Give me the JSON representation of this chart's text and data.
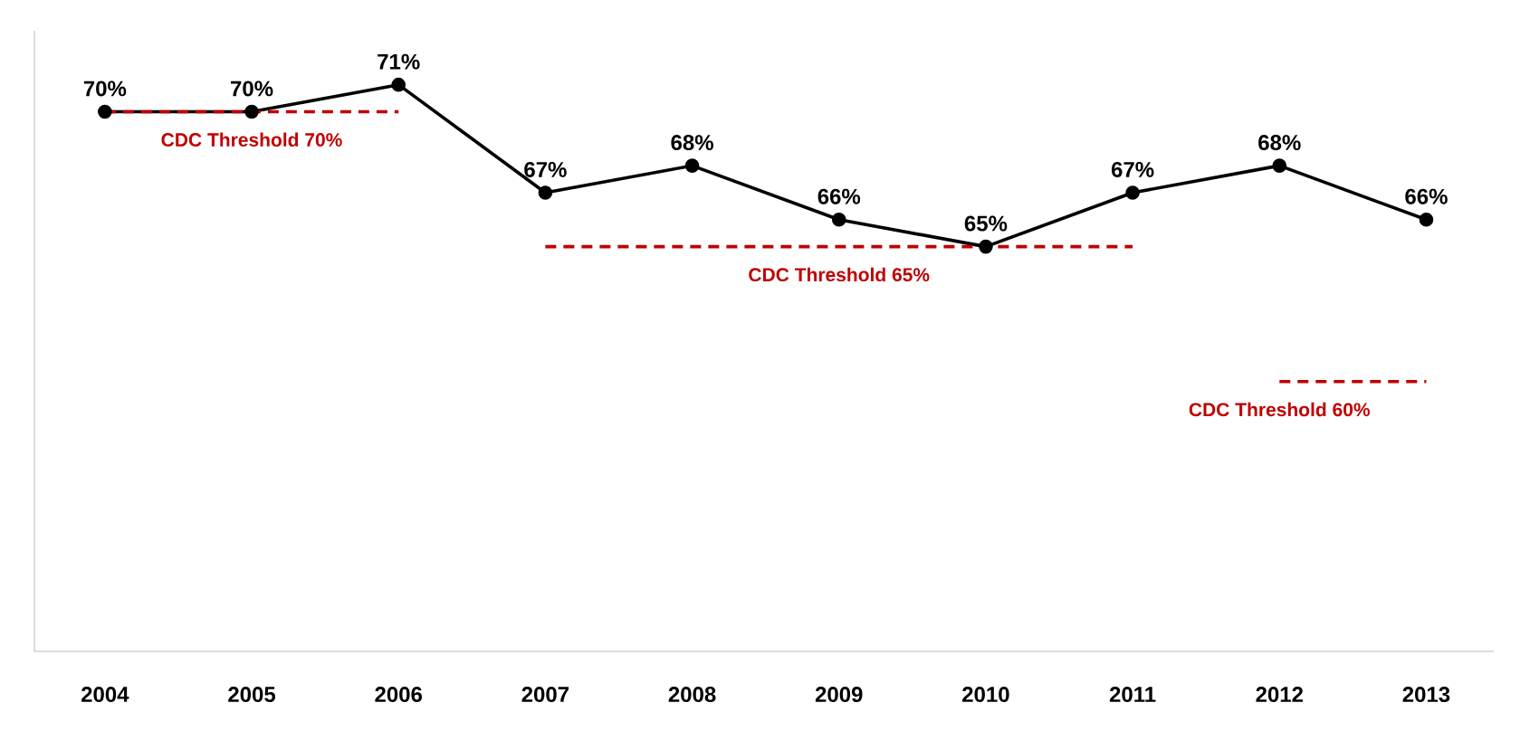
{
  "chart_data": {
    "type": "line",
    "categories": [
      "2004",
      "2005",
      "2006",
      "2007",
      "2008",
      "2009",
      "2010",
      "2011",
      "2012",
      "2013"
    ],
    "series": [
      {
        "color": "#000000",
        "marker": "circle",
        "line_style": "solid",
        "values": [
          70,
          70,
          71,
          67,
          68,
          66,
          65,
          67,
          68,
          66
        ],
        "value_labels": [
          "70%",
          "70%",
          "71%",
          "67%",
          "68%",
          "66%",
          "65%",
          "67%",
          "68%",
          "66%"
        ]
      },
      {
        "color": "#c00000",
        "line_style": "dashed",
        "values": [
          70,
          70,
          70,
          null,
          null,
          null,
          null,
          null,
          null,
          null
        ]
      },
      {
        "color": "#c00000",
        "line_style": "dashed",
        "values": [
          null,
          null,
          null,
          65,
          65,
          65,
          65,
          65,
          null,
          null
        ]
      },
      {
        "color": "#c00000",
        "line_style": "dashed",
        "values": [
          null,
          null,
          null,
          null,
          null,
          null,
          null,
          null,
          60,
          60
        ]
      }
    ],
    "annotations": [
      {
        "text": "CDC Threshold 70%",
        "x": "2005",
        "y": 70
      },
      {
        "text": "CDC Threshold 65%",
        "x": "2009",
        "y": 65
      },
      {
        "text": "CDC Threshold 60%",
        "x": "2012",
        "y": 60
      }
    ],
    "ylim": [
      50,
      73
    ],
    "tick_labels": "x"
  }
}
